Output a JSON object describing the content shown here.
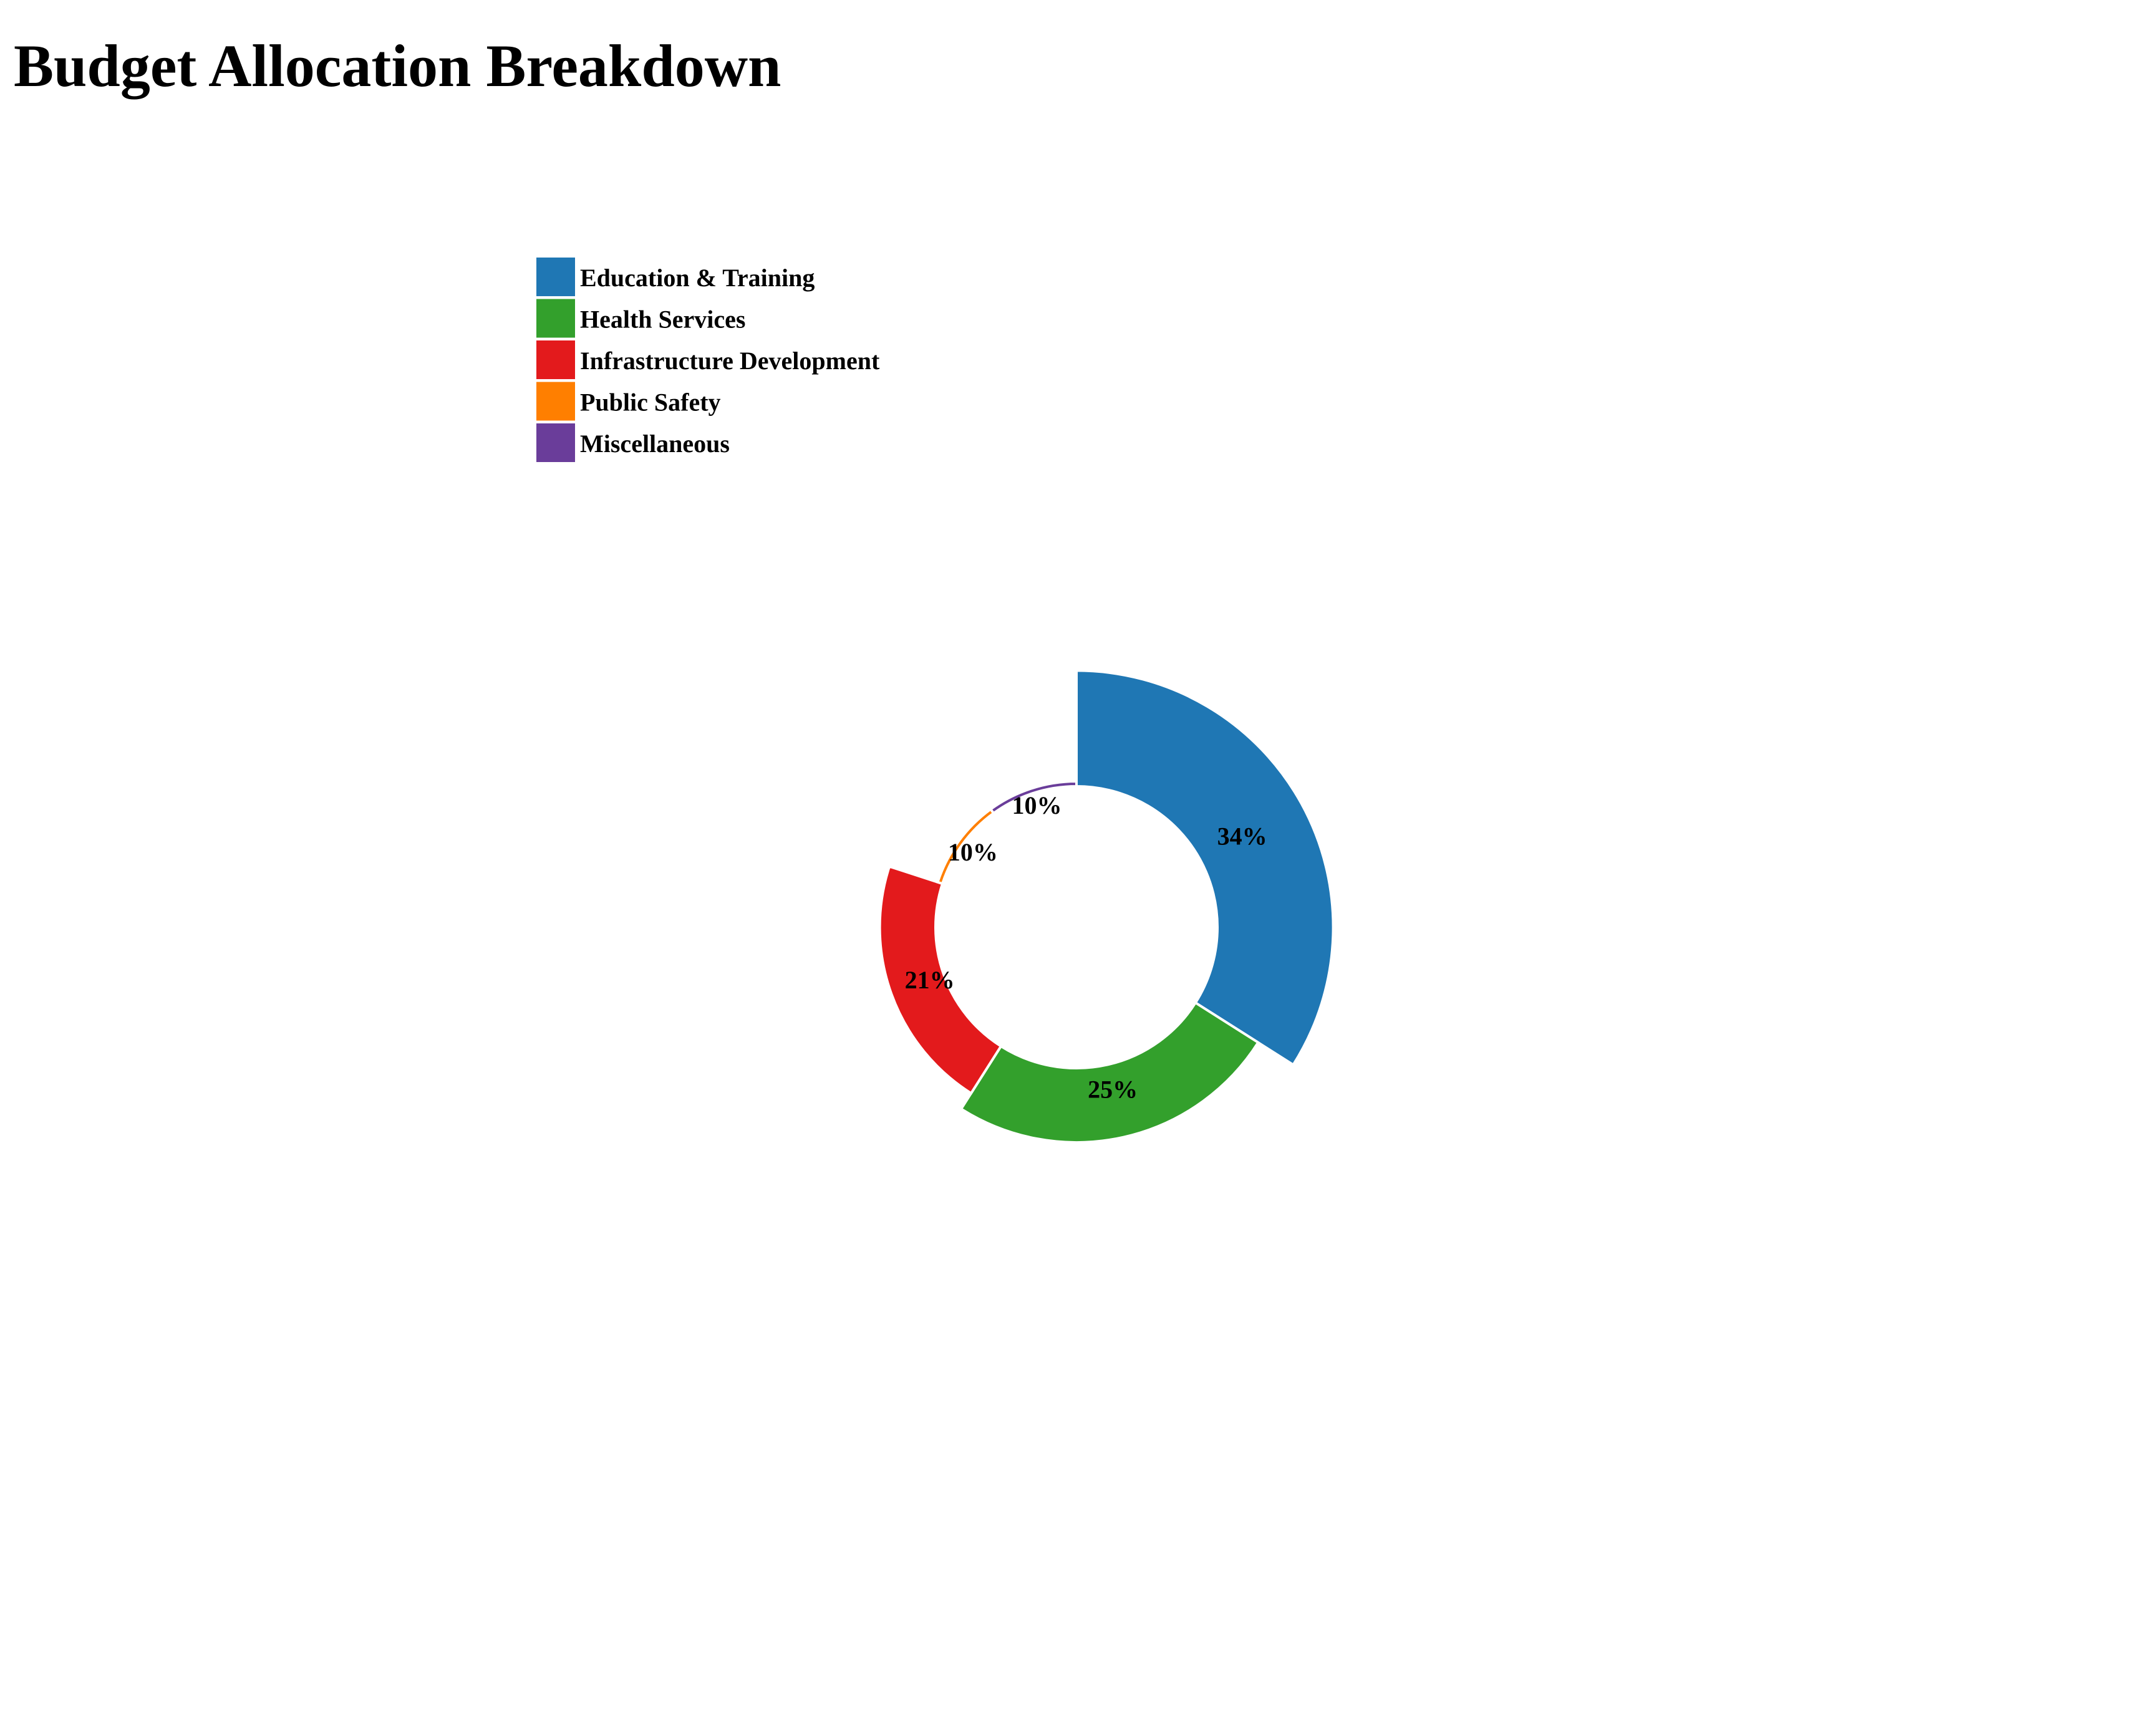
{
  "chart_data": {
    "type": "pie",
    "variant": "donut",
    "title": "Budget Allocation Breakdown",
    "legend_placement": "top-left",
    "categories": [
      "Education & Training",
      "Health Services",
      "Infrastructure Development",
      "Public Safety",
      "Miscellaneous"
    ],
    "values": [
      34,
      25,
      21,
      10,
      10
    ],
    "labels": [
      "34%",
      "25%",
      "21%",
      "10%",
      "10%"
    ],
    "colors": [
      "#1f77b4",
      "#33a02c",
      "#e31a1c",
      "#ff7f00",
      "#6a3d9a"
    ]
  }
}
